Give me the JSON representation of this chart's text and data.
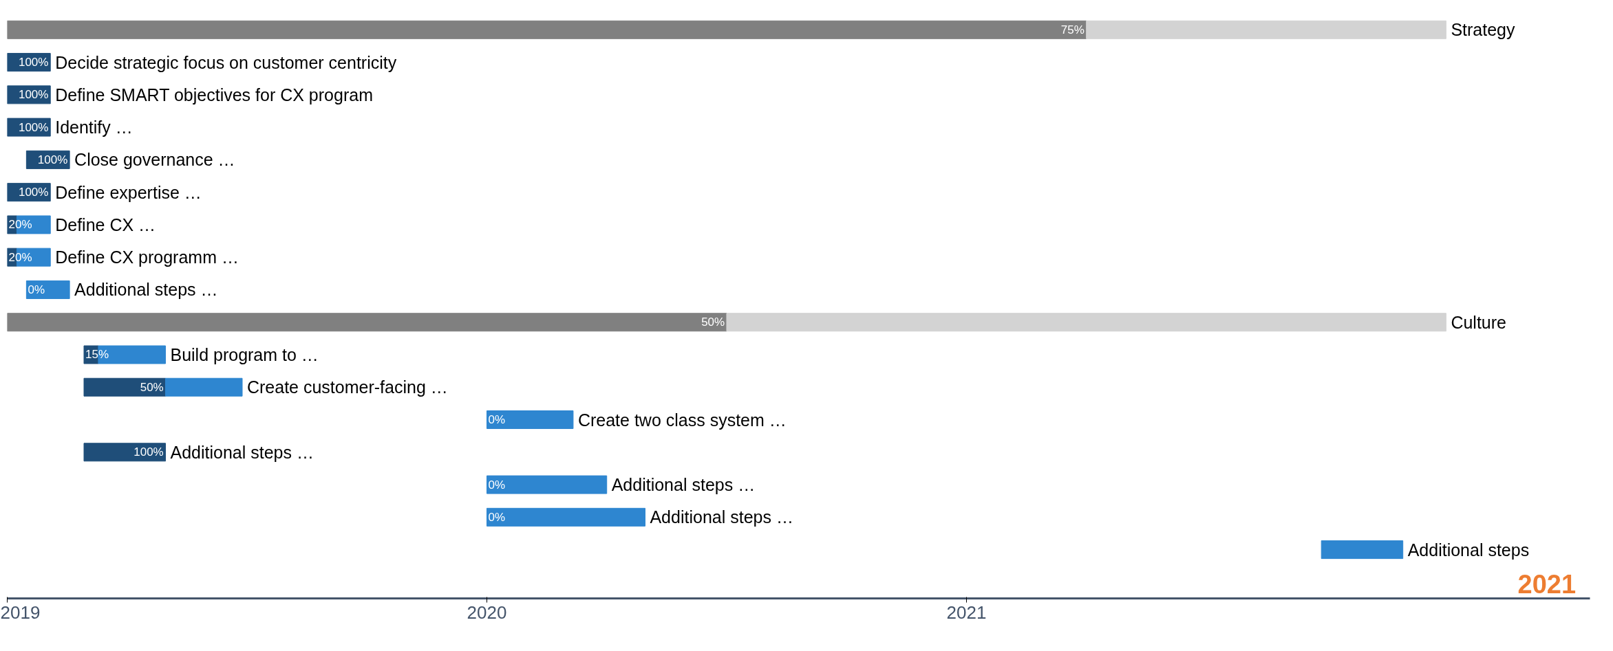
{
  "chart_data": {
    "type": "bar",
    "orientation": "horizontal",
    "tick_labels": "x",
    "title": "2021",
    "categories": [
      "Strategy",
      "Decide strategic focus on customer centricity",
      "Define SMART objectives for CX program",
      "Identify …",
      "Close governance …",
      "Define expertise …",
      "Define CX …",
      "Define CX programm …",
      "Additional steps …",
      "Culture",
      "Build program to …",
      "Create customer-facing …",
      "Create two class system …",
      "Additional steps …",
      "Additional steps …",
      "Additional steps …",
      "Additional steps"
    ],
    "series": [
      {
        "base": [
          2019,
          2019,
          2019,
          2019,
          2019.04,
          2019,
          2019,
          2019,
          null,
          2019,
          2019.16,
          2019.16,
          null,
          2019.16,
          null,
          null,
          null
        ],
        "colors": [
          "#808080",
          "#1f4e79",
          "#1f4e79",
          "#1f4e79",
          "#1f4e79",
          "#1f4e79",
          "#1f4e79",
          "#1f4e79",
          "#1f4e79",
          "#808080",
          "#1f4e79",
          "#1f4e79",
          "#1f4e79",
          "#1f4e79",
          "#1f4e79",
          "#1f4e79",
          "#1f4e79"
        ],
        "values": [
          2.25,
          0.09,
          0.09,
          0.09,
          0.09,
          0.09,
          0.02,
          0.02,
          null,
          1.5,
          0.03,
          0.17,
          null,
          0.17,
          null,
          null,
          null
        ]
      },
      {
        "base": [
          2021.25,
          null,
          null,
          null,
          null,
          null,
          2019.02,
          2019.02,
          2019.04,
          2020.5,
          2019.19,
          2019.33,
          2020,
          null,
          2020,
          2020,
          2021.74
        ],
        "colors": [
          "#d3d3d3",
          "#2e86d0",
          "#2e86d0",
          "#2e86d0",
          "#2e86d0",
          "#2e86d0",
          "#2e86d0",
          "#2e86d0",
          "#2e86d0",
          "#d3d3d3",
          "#2e86d0",
          "#2e86d0",
          "#2e86d0",
          "#2e86d0",
          "#2e86d0",
          "#2e86d0",
          "#2e86d0"
        ],
        "values": [
          0.75,
          null,
          null,
          null,
          null,
          null,
          0.07,
          0.07,
          0.09,
          1.5,
          0.14,
          0.16,
          0.18,
          null,
          0.25,
          0.33,
          0.17
        ]
      }
    ],
    "xlim": [
      2019,
      2022.3
    ],
    "xticks": [
      2019,
      2020,
      2021
    ],
    "annotations": [
      "75%",
      "100%",
      "100%",
      "100%",
      "100%",
      "100%",
      "20%",
      "20%",
      "0%",
      "50%",
      "15%",
      "50%",
      "0%",
      "100%",
      "0%",
      "0%"
    ]
  }
}
